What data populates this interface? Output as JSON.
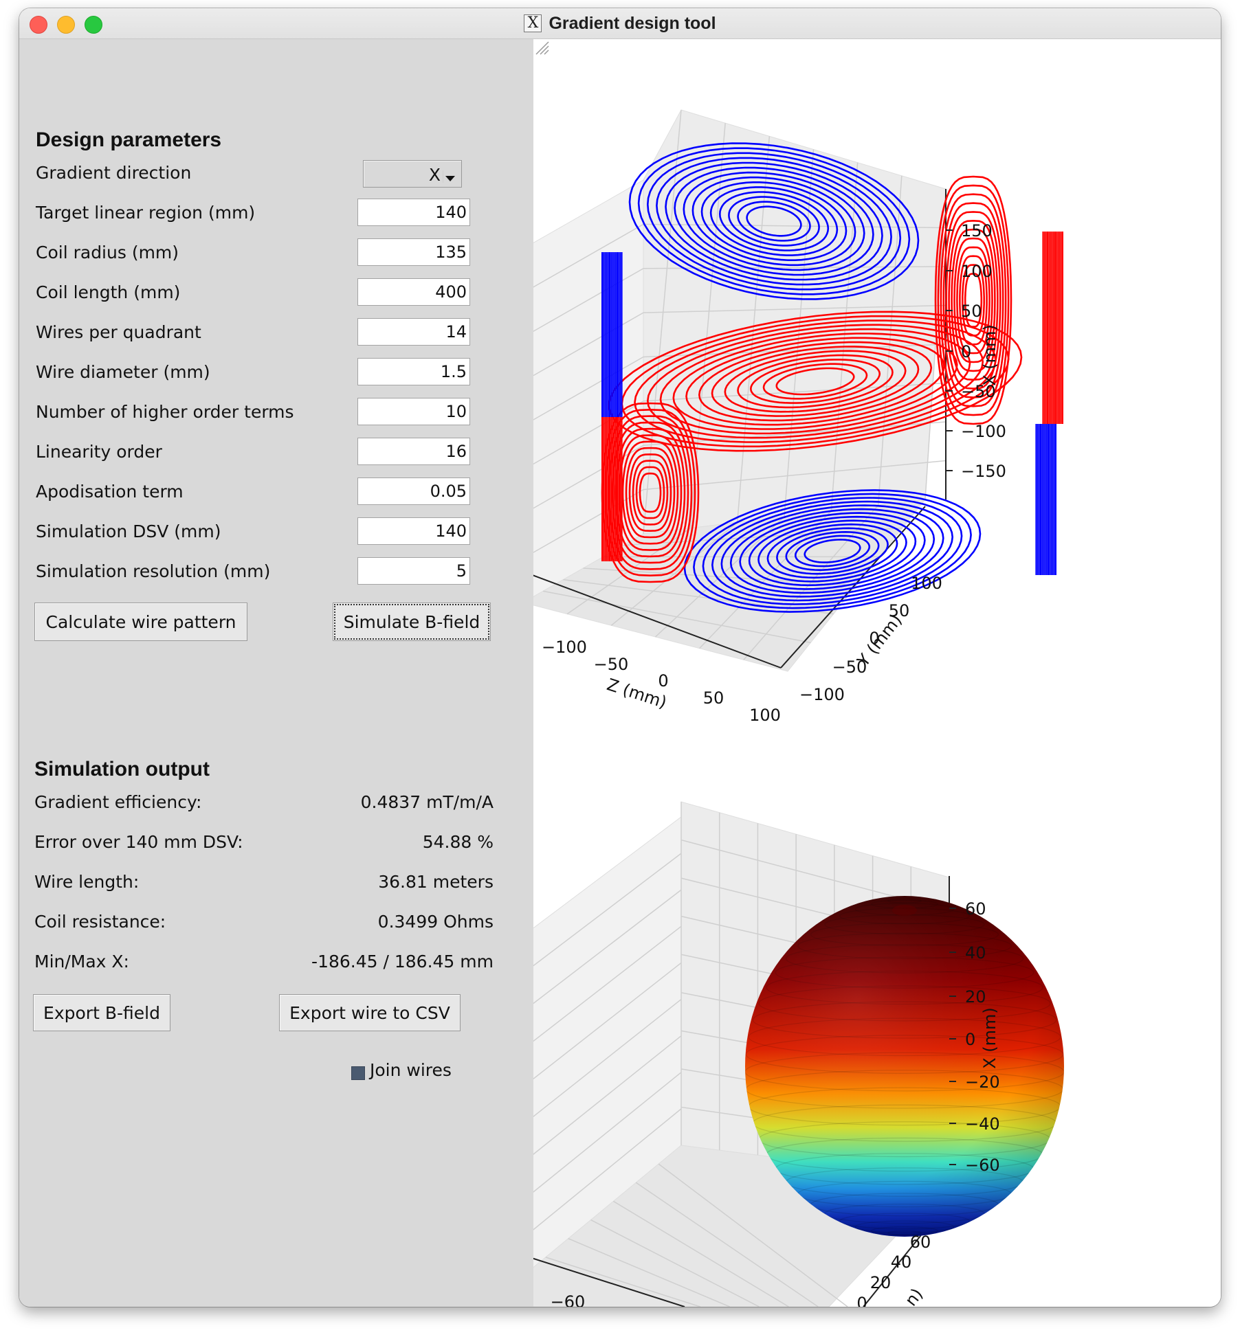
{
  "window": {
    "title": "Gradient design tool",
    "app_icon": "X"
  },
  "design": {
    "title": "Design parameters",
    "gradient_direction": {
      "label": "Gradient direction",
      "value": "X"
    },
    "params": [
      {
        "label": "Target linear region (mm)",
        "value": "140"
      },
      {
        "label": "Coil radius (mm)",
        "value": "135"
      },
      {
        "label": "Coil length (mm)",
        "value": "400"
      },
      {
        "label": "Wires per quadrant",
        "value": "14"
      },
      {
        "label": "Wire diameter (mm)",
        "value": "1.5"
      },
      {
        "label": "Number of higher order terms",
        "value": "10"
      },
      {
        "label": "Linearity order",
        "value": "16"
      },
      {
        "label": "Apodisation term",
        "value": "0.05"
      },
      {
        "label": "Simulation DSV (mm)",
        "value": "140"
      },
      {
        "label": "Simulation resolution (mm)",
        "value": "5"
      }
    ],
    "calculate_button": "Calculate wire pattern",
    "simulate_button": "Simulate B-field"
  },
  "output": {
    "title": "Simulation output",
    "rows": [
      {
        "label": "Gradient efficiency:",
        "value": "0.4837 mT/m/A"
      },
      {
        "label": "Error over 140 mm DSV:",
        "value": "54.88 %"
      },
      {
        "label": "Wire length:",
        "value": "36.81 meters"
      },
      {
        "label": "Coil resistance:",
        "value": "0.3499 Ohms"
      },
      {
        "label": "Min/Max X:",
        "value": "-186.45 / 186.45 mm"
      }
    ],
    "export_bfield_button": "Export B-field",
    "export_wire_button": "Export wire to CSV",
    "join_wires": {
      "label": "Join wires",
      "checked": true
    }
  },
  "chart_data": [
    {
      "type": "line3d",
      "title": "",
      "zlabel": "X (mm)",
      "ylabel": "Y (mm)",
      "xlabel": "Z (mm)",
      "x_ticks": [
        "−100",
        "−50",
        "0",
        "50",
        "100"
      ],
      "y_ticks": [
        "100",
        "50",
        "0",
        "−50",
        "−100"
      ],
      "z_ticks": [
        "150",
        "100",
        "50",
        "0",
        "−50",
        "−100",
        "−150"
      ],
      "series": [
        {
          "color": "#0000ff"
        },
        {
          "color": "#ff0000"
        }
      ],
      "grid": true
    },
    {
      "type": "surface3d",
      "title": "",
      "zlabel": "X (mm)",
      "ylabel_partial": "n)",
      "x_ticks": [
        "−60"
      ],
      "y_ticks": [
        "60",
        "40",
        "20",
        "0"
      ],
      "z_ticks": [
        "60",
        "40",
        "20",
        "0",
        "−20",
        "−40",
        "−60"
      ],
      "colormap": "jet",
      "grid": true
    }
  ]
}
